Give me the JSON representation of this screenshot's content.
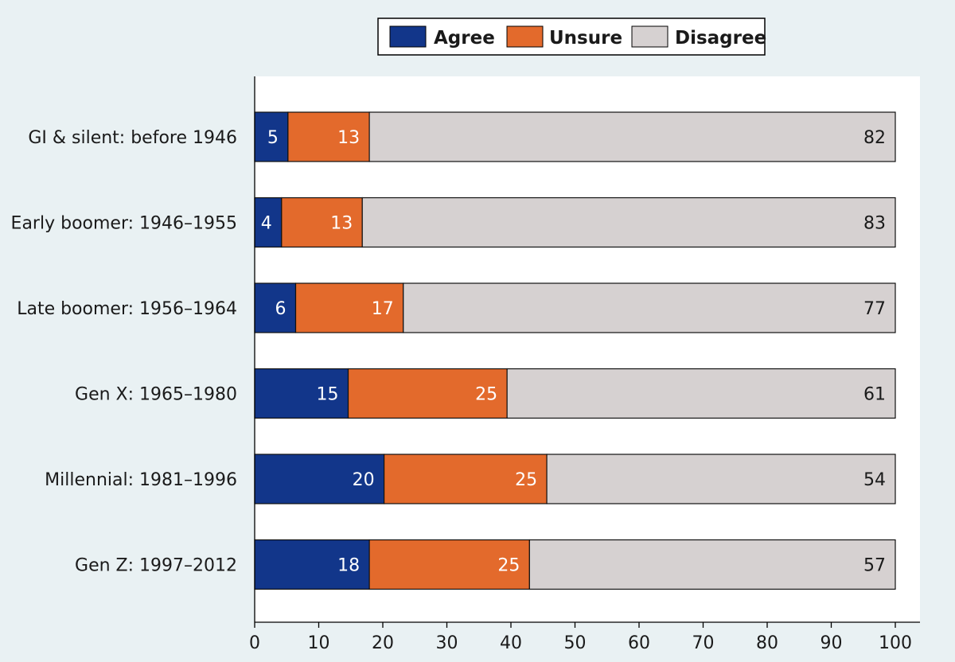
{
  "chart_data": {
    "type": "bar",
    "orientation": "horizontal",
    "stacked": true,
    "categories": [
      "GI & silent: before 1946",
      "Early boomer: 1946–1955",
      "Late boomer: 1956–1964",
      "Gen X: 1965–1980",
      "Millennial: 1981–1996",
      "Gen Z: 1997–2012"
    ],
    "series": [
      {
        "name": "Agree",
        "color": "#12368a",
        "label_color": "#ffffff",
        "values": [
          5,
          4,
          6,
          15,
          20,
          18
        ]
      },
      {
        "name": "Unsure",
        "color": "#e36a2c",
        "label_color": "#ffffff",
        "values": [
          13,
          13,
          17,
          25,
          25,
          25
        ]
      },
      {
        "name": "Disagree",
        "color": "#d6d1d1",
        "label_color": "#1a1a1a",
        "values": [
          82,
          83,
          77,
          61,
          54,
          57
        ]
      }
    ],
    "plotted_totals": {
      "Agree": [
        5.2,
        4.2,
        6.4,
        14.6,
        20.2,
        17.9
      ],
      "Unsure": [
        17.9,
        16.8,
        23.2,
        39.4,
        45.6,
        42.9
      ]
    },
    "xticks": [
      "0",
      "10",
      "20",
      "30",
      "40",
      "50",
      "60",
      "70",
      "80",
      "90",
      "100"
    ],
    "xlim": [
      0,
      100
    ],
    "legend_position": "top",
    "grid": false,
    "title": "",
    "xlabel": "",
    "ylabel": ""
  },
  "colors": {
    "background": "#e9f1f3",
    "plot_area": "#ffffff"
  }
}
